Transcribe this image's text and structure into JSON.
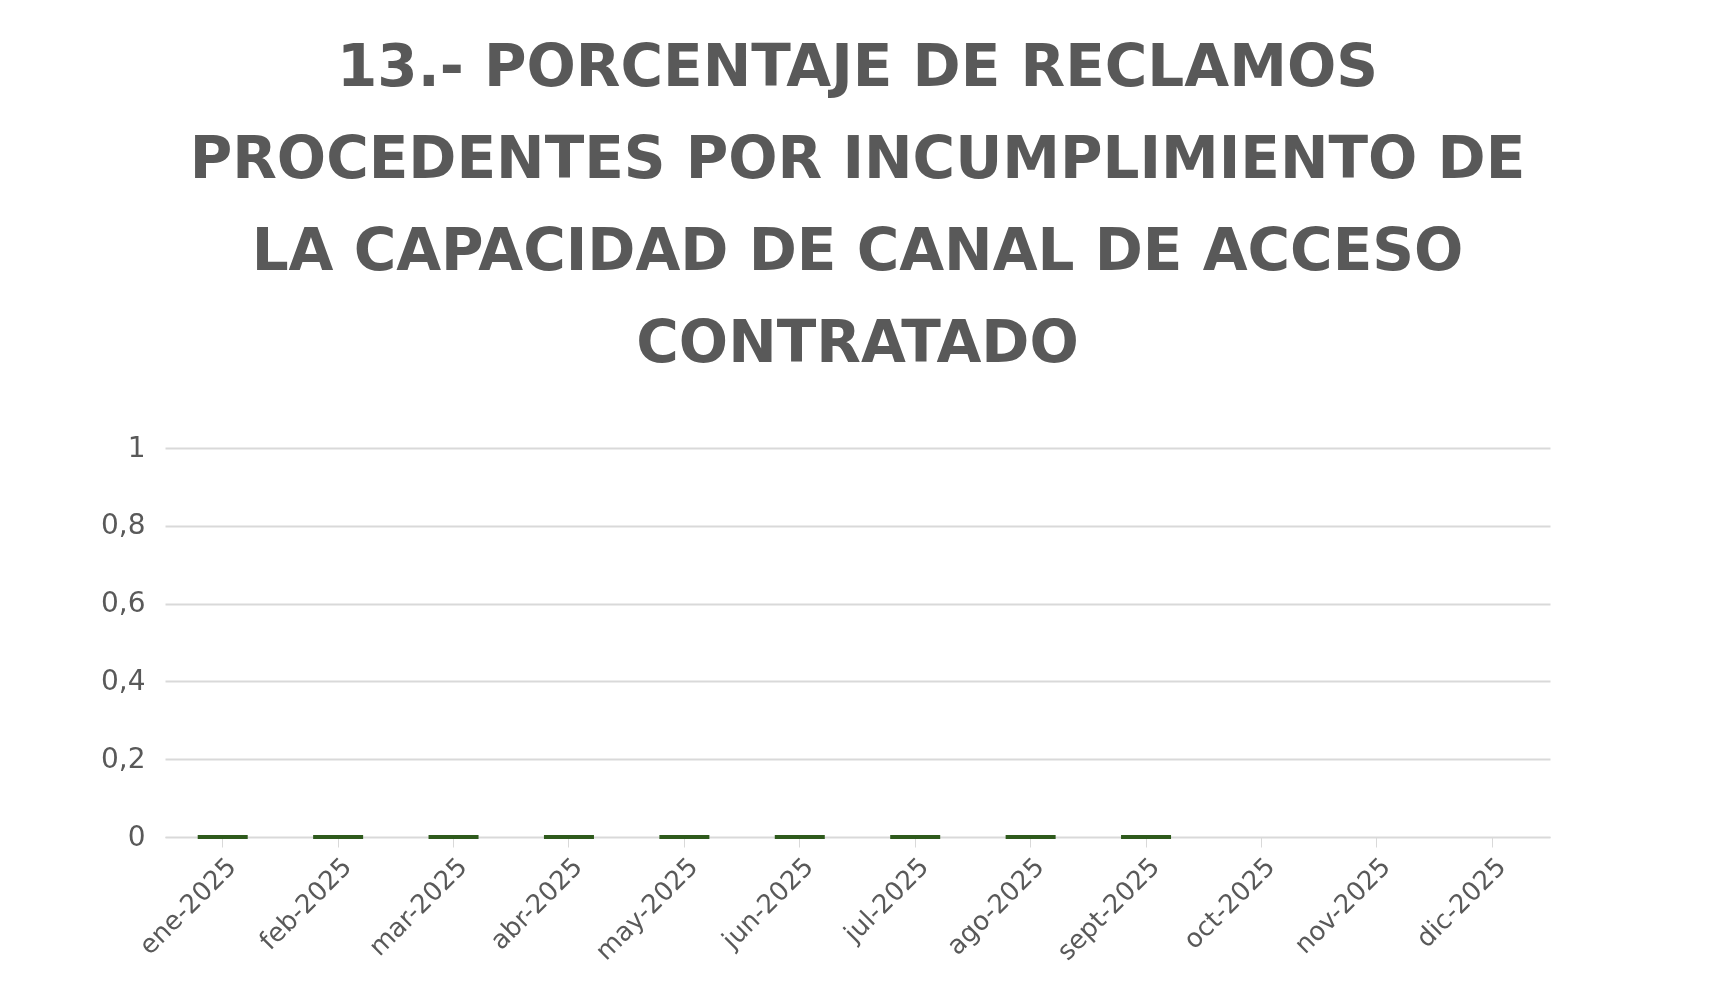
{
  "chart_data": {
    "type": "bar",
    "title": [
      "13.- PORCENTAJE DE RECLAMOS",
      "PROCEDENTES POR INCUMPLIMIENTO DE",
      "LA CAPACIDAD DE CANAL DE ACCESO",
      "CONTRATADO"
    ],
    "categories": [
      "ene-2025",
      "feb-2025",
      "mar-2025",
      "abr-2025",
      "may-2025",
      "jun-2025",
      "jul-2025",
      "ago-2025",
      "sept-2025",
      "oct-2025",
      "nov-2025",
      "dic-2025"
    ],
    "values": [
      0,
      0,
      0,
      0,
      0,
      0,
      0,
      0,
      0,
      null,
      null,
      null
    ],
    "color": "#2e5a1c",
    "ylim": [
      0,
      1
    ],
    "yticks": [
      0,
      {
        "value": 0.2,
        "label": "0,2"
      },
      {
        "value": 0.4,
        "label": "0,4"
      },
      {
        "value": 0.6,
        "label": "0,6"
      },
      {
        "value": 0.8,
        "label": "0,8"
      },
      1
    ],
    "grid": "y"
  }
}
